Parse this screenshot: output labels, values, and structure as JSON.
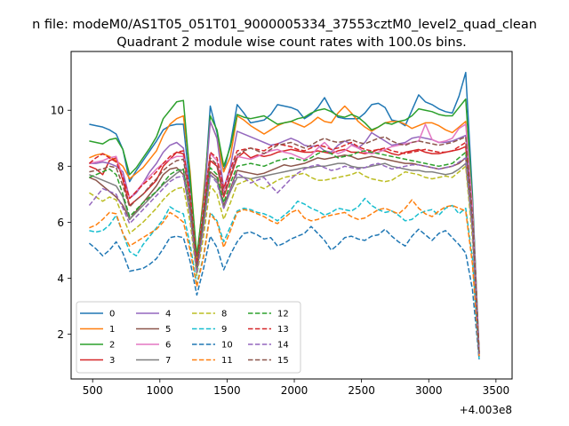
{
  "figure": {
    "suptitle": "n file: modeM0/AS1T05_051T01_9000005334_37553cztM0_level2_quad_clean",
    "offset_label": "+4.003e8"
  },
  "chart_data": {
    "type": "line",
    "title": "Quadrant 2 module wise count rates with 100.0s bins.",
    "xlabel": "",
    "ylabel": "",
    "xlim": [
      340,
      3620
    ],
    "ylim": [
      0.4,
      12.1
    ],
    "x_offset": 400300000,
    "xticks": [
      500,
      1000,
      1500,
      2000,
      2500,
      3000,
      3500
    ],
    "yticks": [
      2,
      4,
      6,
      8,
      10
    ],
    "grid": false,
    "legend_position": "lower-left",
    "legend_columns": 4,
    "x": [
      475,
      525,
      575,
      625,
      675,
      725,
      775,
      825,
      875,
      925,
      975,
      1025,
      1075,
      1125,
      1175,
      1225,
      1275,
      1325,
      1375,
      1425,
      1475,
      1525,
      1575,
      1625,
      1675,
      1725,
      1775,
      1825,
      1875,
      1925,
      1975,
      2025,
      2075,
      2125,
      2175,
      2225,
      2275,
      2325,
      2375,
      2425,
      2475,
      2525,
      2575,
      2625,
      2675,
      2725,
      2775,
      2825,
      2875,
      2925,
      2975,
      3025,
      3075,
      3125,
      3175,
      3225,
      3275,
      3325,
      3375
    ],
    "series": [
      {
        "name": "0",
        "color": "#1f77b4",
        "dash": "solid",
        "values": [
          9.5,
          9.45,
          9.4,
          9.3,
          9.15,
          8.6,
          7.45,
          7.85,
          8.2,
          8.55,
          8.9,
          9.3,
          9.45,
          9.5,
          9.5,
          7.2,
          4.5,
          6.6,
          10.15,
          9.2,
          7.8,
          8.8,
          10.2,
          9.9,
          9.55,
          9.6,
          9.65,
          9.85,
          10.2,
          10.15,
          10.1,
          10.0,
          9.7,
          9.85,
          10.1,
          10.45,
          10.0,
          9.75,
          9.7,
          9.7,
          9.7,
          9.9,
          10.2,
          10.25,
          10.1,
          9.65,
          9.6,
          9.45,
          10.0,
          10.55,
          10.3,
          10.2,
          10.05,
          9.95,
          9.9,
          10.5,
          11.35,
          7.0,
          1.3
        ]
      },
      {
        "name": "1",
        "color": "#ff7f0e",
        "dash": "solid",
        "values": [
          8.3,
          8.4,
          8.45,
          8.35,
          8.2,
          8.0,
          7.55,
          7.75,
          7.95,
          8.25,
          8.55,
          9.1,
          9.5,
          9.7,
          9.8,
          7.8,
          4.6,
          7.0,
          9.6,
          9.0,
          7.8,
          8.35,
          9.8,
          9.65,
          9.45,
          9.3,
          9.15,
          9.3,
          9.45,
          9.55,
          9.6,
          9.5,
          9.4,
          9.55,
          9.75,
          9.6,
          9.55,
          9.9,
          10.15,
          9.9,
          9.6,
          9.4,
          9.25,
          9.4,
          9.55,
          9.6,
          9.6,
          9.5,
          9.35,
          9.45,
          9.55,
          9.55,
          9.45,
          9.3,
          9.2,
          9.4,
          9.6,
          6.5,
          1.3
        ]
      },
      {
        "name": "2",
        "color": "#2ca02c",
        "dash": "solid",
        "values": [
          8.9,
          8.85,
          8.8,
          8.95,
          9.0,
          8.6,
          7.7,
          7.95,
          8.3,
          8.65,
          9.05,
          9.7,
          10.0,
          10.3,
          10.35,
          7.6,
          4.8,
          6.8,
          9.8,
          9.3,
          8.0,
          8.7,
          9.85,
          9.75,
          9.7,
          9.75,
          9.8,
          9.65,
          9.5,
          9.55,
          9.6,
          9.7,
          9.75,
          9.9,
          10.0,
          10.05,
          9.95,
          9.8,
          9.75,
          9.85,
          9.75,
          9.55,
          9.3,
          9.4,
          9.55,
          9.5,
          9.6,
          9.65,
          9.8,
          10.05,
          10.0,
          9.95,
          9.85,
          9.8,
          9.8,
          10.1,
          10.4,
          6.8,
          1.3
        ]
      },
      {
        "name": "3",
        "color": "#d62728",
        "dash": "solid",
        "values": [
          8.0,
          7.9,
          7.7,
          8.2,
          8.3,
          7.5,
          6.6,
          6.8,
          7.0,
          7.25,
          7.5,
          8.0,
          8.25,
          8.5,
          8.45,
          6.7,
          4.4,
          6.3,
          8.2,
          8.0,
          6.9,
          7.6,
          8.3,
          8.5,
          8.3,
          8.4,
          8.35,
          8.4,
          8.5,
          8.55,
          8.6,
          8.55,
          8.5,
          8.5,
          8.55,
          8.5,
          8.45,
          8.55,
          8.6,
          8.5,
          8.5,
          8.45,
          8.5,
          8.6,
          8.55,
          8.45,
          8.4,
          8.5,
          8.55,
          8.6,
          8.5,
          8.45,
          8.45,
          8.5,
          8.55,
          8.6,
          8.7,
          6.0,
          1.2
        ]
      },
      {
        "name": "4",
        "color": "#9467bd",
        "dash": "solid",
        "values": [
          8.1,
          8.1,
          8.15,
          8.1,
          8.0,
          7.8,
          6.85,
          7.05,
          7.4,
          7.8,
          8.1,
          8.5,
          8.75,
          8.85,
          8.65,
          7.0,
          4.3,
          6.5,
          9.6,
          9.0,
          7.2,
          8.0,
          9.25,
          9.15,
          9.05,
          8.95,
          8.85,
          8.75,
          8.8,
          8.9,
          9.0,
          8.9,
          8.75,
          8.7,
          8.75,
          8.55,
          8.5,
          8.75,
          8.9,
          8.8,
          8.65,
          8.85,
          9.2,
          9.05,
          8.9,
          8.75,
          8.8,
          8.85,
          9.0,
          9.05,
          9.0,
          8.95,
          8.85,
          8.85,
          8.9,
          9.0,
          9.1,
          6.5,
          1.3
        ]
      },
      {
        "name": "5",
        "color": "#8c564b",
        "dash": "solid",
        "values": [
          7.6,
          7.5,
          7.3,
          7.1,
          6.9,
          6.6,
          6.1,
          6.4,
          6.7,
          7.0,
          7.3,
          7.7,
          7.9,
          7.95,
          7.7,
          6.3,
          4.3,
          6.0,
          7.8,
          7.6,
          6.6,
          7.2,
          7.85,
          7.8,
          7.75,
          7.7,
          7.75,
          7.85,
          7.95,
          8.05,
          8.0,
          8.05,
          8.1,
          8.2,
          8.3,
          8.25,
          8.3,
          8.35,
          8.4,
          8.35,
          8.25,
          8.3,
          8.35,
          8.3,
          8.25,
          8.2,
          8.15,
          8.1,
          8.1,
          8.05,
          8.0,
          7.95,
          7.9,
          7.95,
          8.0,
          8.1,
          8.3,
          5.8,
          1.3
        ]
      },
      {
        "name": "6",
        "color": "#e377c2",
        "dash": "solid",
        "values": [
          8.1,
          8.15,
          8.2,
          8.3,
          8.35,
          7.6,
          6.85,
          7.1,
          7.4,
          7.65,
          7.9,
          8.1,
          8.25,
          8.35,
          8.35,
          7.0,
          4.3,
          6.6,
          8.45,
          8.2,
          7.1,
          7.9,
          8.35,
          8.3,
          8.25,
          8.35,
          8.45,
          8.55,
          8.6,
          8.5,
          8.45,
          8.35,
          8.25,
          8.4,
          8.65,
          8.85,
          8.6,
          8.45,
          8.55,
          8.75,
          8.65,
          8.5,
          8.45,
          8.5,
          8.6,
          8.7,
          8.75,
          8.8,
          8.85,
          8.9,
          9.5,
          8.95,
          8.85,
          8.9,
          9.0,
          9.35,
          9.5,
          6.6,
          1.3
        ]
      },
      {
        "name": "7",
        "color": "#7f7f7f",
        "dash": "solid",
        "values": [
          7.7,
          7.6,
          7.5,
          7.4,
          7.3,
          6.9,
          6.1,
          6.35,
          6.6,
          6.85,
          7.1,
          7.35,
          7.55,
          7.75,
          7.9,
          6.3,
          4.2,
          5.9,
          7.7,
          7.5,
          6.5,
          7.1,
          7.6,
          7.6,
          7.55,
          7.6,
          7.65,
          7.7,
          7.75,
          7.8,
          7.85,
          7.9,
          7.95,
          7.95,
          8.0,
          8.0,
          8.05,
          8.1,
          8.1,
          8.0,
          7.95,
          7.95,
          8.0,
          8.05,
          8.1,
          8.0,
          7.95,
          7.9,
          7.85,
          7.85,
          7.8,
          7.8,
          7.75,
          7.7,
          7.75,
          7.9,
          8.1,
          5.7,
          1.3
        ]
      },
      {
        "name": "8",
        "color": "#bcbd22",
        "dash": "dashed",
        "values": [
          7.05,
          6.9,
          6.75,
          6.9,
          6.8,
          6.2,
          5.6,
          5.8,
          6.0,
          6.25,
          6.5,
          6.8,
          7.05,
          7.2,
          7.25,
          6.0,
          4.1,
          5.5,
          7.3,
          7.0,
          6.1,
          6.7,
          7.35,
          7.45,
          7.55,
          7.3,
          7.2,
          7.35,
          7.5,
          7.6,
          7.65,
          7.7,
          7.75,
          7.6,
          7.5,
          7.5,
          7.55,
          7.6,
          7.65,
          7.7,
          7.8,
          7.65,
          7.55,
          7.5,
          7.45,
          7.5,
          7.65,
          7.8,
          7.75,
          7.7,
          7.6,
          7.55,
          7.6,
          7.65,
          7.6,
          7.8,
          8.0,
          5.4,
          1.3
        ]
      },
      {
        "name": "9",
        "color": "#17becf",
        "dash": "dashed",
        "values": [
          5.7,
          5.65,
          5.7,
          5.9,
          6.25,
          5.6,
          4.95,
          4.8,
          5.2,
          5.5,
          5.8,
          6.1,
          6.55,
          6.4,
          6.3,
          5.2,
          3.8,
          4.8,
          6.35,
          6.05,
          5.3,
          5.85,
          6.4,
          6.5,
          6.45,
          6.35,
          6.3,
          6.2,
          6.05,
          6.25,
          6.45,
          6.75,
          6.65,
          6.5,
          6.4,
          6.25,
          6.35,
          6.5,
          6.45,
          6.4,
          6.55,
          6.85,
          6.6,
          6.45,
          6.35,
          6.4,
          6.25,
          6.05,
          6.1,
          6.3,
          6.4,
          6.45,
          6.25,
          6.5,
          6.6,
          6.3,
          6.5,
          4.7,
          1.1
        ]
      },
      {
        "name": "10",
        "color": "#1f77b4",
        "dash": "dashed",
        "values": [
          5.25,
          5.05,
          4.8,
          5.0,
          5.3,
          4.9,
          4.25,
          4.3,
          4.35,
          4.5,
          4.7,
          5.05,
          5.45,
          5.5,
          5.45,
          4.6,
          3.4,
          4.35,
          5.5,
          5.1,
          4.3,
          4.85,
          5.3,
          5.6,
          5.65,
          5.55,
          5.4,
          5.45,
          5.15,
          5.25,
          5.4,
          5.5,
          5.6,
          5.85,
          5.6,
          5.35,
          5.0,
          5.2,
          5.45,
          5.5,
          5.4,
          5.35,
          5.5,
          5.55,
          5.75,
          5.5,
          5.3,
          5.15,
          5.5,
          5.75,
          5.55,
          5.35,
          5.6,
          5.7,
          5.45,
          5.2,
          4.9,
          3.6,
          1.1
        ]
      },
      {
        "name": "11",
        "color": "#ff7f0e",
        "dash": "dashed",
        "values": [
          5.8,
          5.9,
          6.1,
          6.35,
          6.3,
          5.6,
          5.15,
          5.3,
          5.45,
          5.6,
          5.75,
          6.0,
          6.35,
          6.2,
          6.0,
          5.0,
          3.7,
          4.75,
          6.3,
          6.0,
          5.1,
          5.7,
          6.35,
          6.45,
          6.4,
          6.3,
          6.2,
          6.05,
          5.95,
          6.15,
          6.35,
          6.45,
          6.15,
          6.05,
          6.1,
          6.2,
          6.25,
          6.3,
          6.35,
          6.2,
          6.1,
          6.15,
          6.3,
          6.45,
          6.5,
          6.4,
          6.3,
          6.5,
          6.8,
          6.5,
          6.3,
          6.2,
          6.4,
          6.55,
          6.6,
          6.5,
          6.4,
          4.5,
          1.2
        ]
      },
      {
        "name": "12",
        "color": "#2ca02c",
        "dash": "dashed",
        "values": [
          7.6,
          7.7,
          7.8,
          7.9,
          7.7,
          7.0,
          6.2,
          6.45,
          6.7,
          6.9,
          7.1,
          7.4,
          7.7,
          7.85,
          7.9,
          6.4,
          4.3,
          6.0,
          7.95,
          7.7,
          6.7,
          7.4,
          8.0,
          8.05,
          8.1,
          8.05,
          8.0,
          8.1,
          8.2,
          8.25,
          8.3,
          8.25,
          8.2,
          8.3,
          8.45,
          8.55,
          8.45,
          8.3,
          8.35,
          8.4,
          8.5,
          8.55,
          8.5,
          8.45,
          8.4,
          8.35,
          8.3,
          8.25,
          8.2,
          8.15,
          8.1,
          8.05,
          8.0,
          8.05,
          8.1,
          8.3,
          8.5,
          5.9,
          1.3
        ]
      },
      {
        "name": "13",
        "color": "#d62728",
        "dash": "dashed",
        "values": [
          8.1,
          8.3,
          8.45,
          8.3,
          8.15,
          7.6,
          6.85,
          7.1,
          7.35,
          7.55,
          7.8,
          8.1,
          8.35,
          8.5,
          8.55,
          7.0,
          4.5,
          6.5,
          8.5,
          8.3,
          7.2,
          7.9,
          8.55,
          8.6,
          8.65,
          8.6,
          8.55,
          8.7,
          8.8,
          8.75,
          8.7,
          8.6,
          8.55,
          8.65,
          8.75,
          8.7,
          8.6,
          8.65,
          8.75,
          8.85,
          8.7,
          8.6,
          8.55,
          8.6,
          8.65,
          8.55,
          8.5,
          8.45,
          8.5,
          8.55,
          8.6,
          8.55,
          8.5,
          8.5,
          8.55,
          8.7,
          8.85,
          6.2,
          1.3
        ]
      },
      {
        "name": "14",
        "color": "#9467bd",
        "dash": "dashed",
        "values": [
          6.6,
          6.9,
          7.2,
          7.1,
          7.0,
          6.5,
          5.95,
          6.2,
          6.45,
          6.7,
          6.95,
          7.2,
          7.45,
          7.6,
          7.65,
          6.3,
          4.2,
          5.8,
          7.7,
          7.4,
          6.5,
          7.15,
          7.75,
          7.6,
          7.4,
          7.5,
          7.6,
          7.3,
          7.05,
          7.3,
          7.55,
          7.75,
          7.9,
          8.0,
          8.05,
          7.95,
          7.85,
          7.9,
          8.0,
          7.95,
          7.9,
          7.95,
          8.05,
          8.1,
          8.0,
          7.9,
          7.95,
          8.0,
          8.05,
          8.05,
          8.0,
          7.95,
          7.9,
          7.95,
          8.0,
          8.15,
          8.3,
          5.7,
          1.3
        ]
      },
      {
        "name": "15",
        "color": "#8c564b",
        "dash": "dashed",
        "values": [
          7.8,
          7.85,
          7.9,
          8.0,
          7.95,
          7.3,
          6.55,
          6.8,
          7.0,
          7.3,
          7.55,
          7.85,
          8.05,
          8.2,
          8.25,
          6.75,
          4.4,
          6.3,
          8.3,
          8.05,
          7.0,
          7.7,
          8.4,
          8.55,
          8.65,
          8.55,
          8.45,
          8.6,
          8.75,
          8.8,
          8.85,
          8.75,
          8.65,
          8.75,
          8.9,
          9.0,
          8.9,
          8.85,
          8.9,
          8.95,
          8.85,
          8.8,
          8.9,
          9.0,
          9.05,
          8.9,
          8.8,
          8.75,
          8.85,
          8.9,
          8.85,
          8.8,
          8.75,
          8.8,
          8.85,
          8.95,
          9.05,
          6.3,
          1.3
        ]
      }
    ]
  }
}
